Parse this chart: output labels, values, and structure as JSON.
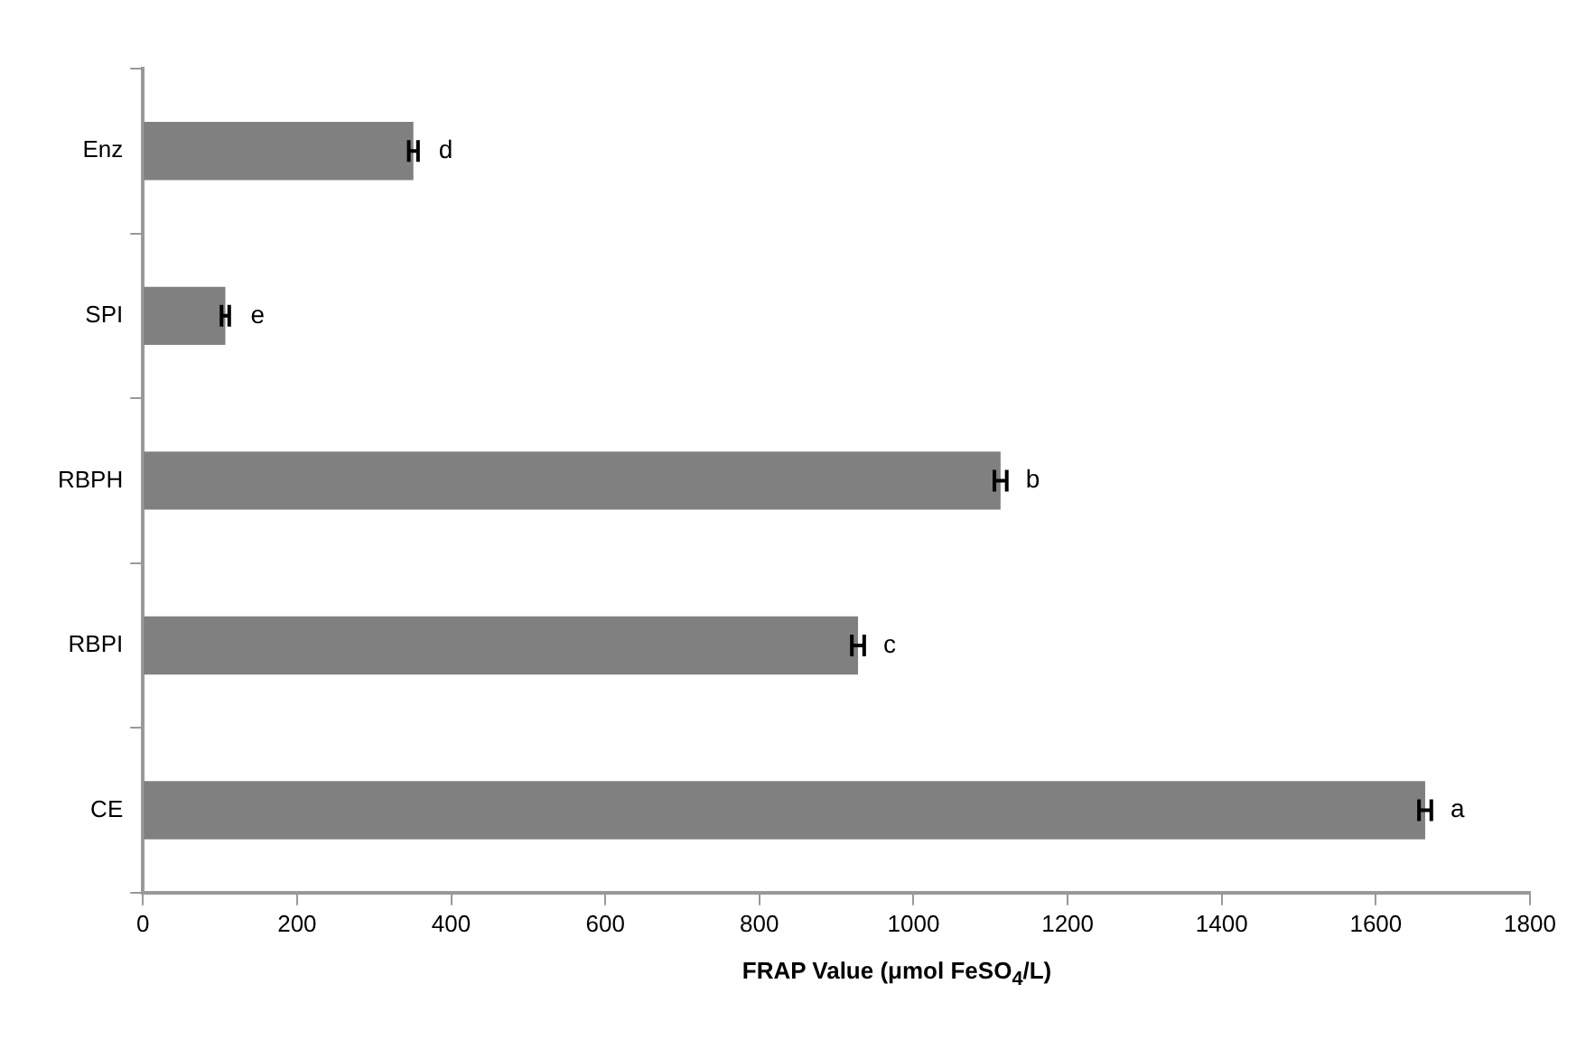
{
  "chart_data": {
    "type": "bar",
    "orientation": "horizontal",
    "xlabel": "FRAP Value (μmol FeSO$_{4}$/L)",
    "categories": [
      "Enz",
      "SPI",
      "RBPH",
      "RBPI",
      "CE"
    ],
    "values": [
      351,
      107,
      1113,
      928,
      1664
    ],
    "color": "#808080",
    "errors": [
      6,
      5,
      8,
      8,
      8
    ],
    "xlim": [
      0,
      1800
    ],
    "xticks": [
      0,
      200,
      400,
      600,
      800,
      1000,
      1200,
      1400,
      1600,
      1800
    ],
    "grid": false,
    "legend": false,
    "annotations": [
      {
        "text": "d",
        "x": 351,
        "y": "Enz"
      },
      {
        "text": "e",
        "x": 107,
        "y": "SPI"
      },
      {
        "text": "b",
        "x": 1113,
        "y": "RBPH"
      },
      {
        "text": "c",
        "x": 928,
        "y": "RBPI"
      },
      {
        "text": "a",
        "x": 1664,
        "y": "CE"
      }
    ]
  }
}
